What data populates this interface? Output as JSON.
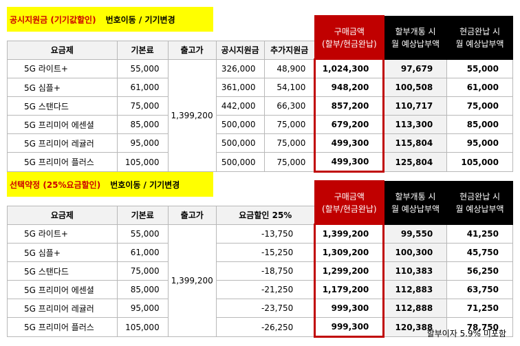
{
  "section1": {
    "title_red": "공시지원금 (기기값할인)",
    "title_black": "번호이동 / 기기변경",
    "headers": [
      "요금제",
      "기본료",
      "출고가",
      "공시지원금",
      "추가지원금",
      "구매금액\n(할부/현금완납)",
      "할부개통 시\n월 예상납부액",
      "현금완납 시\n월 예상납부액"
    ],
    "release_price": "1,399,200",
    "rows": [
      {
        "plan": "5G 라이트+",
        "base": "55,000",
        "subsidy": "326,000",
        "extra": "48,900",
        "price": "1,024,300",
        "installment": "97,679",
        "cash": "55,000"
      },
      {
        "plan": "5G 심플+",
        "base": "61,000",
        "subsidy": "361,000",
        "extra": "54,100",
        "price": "948,200",
        "installment": "100,508",
        "cash": "61,000"
      },
      {
        "plan": "5G 스탠다드",
        "base": "75,000",
        "subsidy": "442,000",
        "extra": "66,300",
        "price": "857,200",
        "installment": "110,717",
        "cash": "75,000"
      },
      {
        "plan": "5G 프리미어 에센셜",
        "base": "85,000",
        "subsidy": "500,000",
        "extra": "75,000",
        "price": "679,200",
        "installment": "113,300",
        "cash": "85,000"
      },
      {
        "plan": "5G 프리미어 레귤러",
        "base": "95,000",
        "subsidy": "500,000",
        "extra": "75,000",
        "price": "499,300",
        "installment": "115,804",
        "cash": "95,000"
      },
      {
        "plan": "5G 프리미어 플러스",
        "base": "105,000",
        "subsidy": "500,000",
        "extra": "75,000",
        "price": "499,300",
        "installment": "125,804",
        "cash": "105,000"
      }
    ]
  },
  "section2": {
    "title_red": "선택약정 (25%요금할인)",
    "title_black": "번호이동 / 기기변경",
    "headers": [
      "요금제",
      "기본료",
      "출고가",
      "요금할인 25%",
      "구매금액\n(할부/현금완납)",
      "할부개통 시\n월 예상납부액",
      "현금완납 시\n월 예상납부액"
    ],
    "release_price": "1,399,200",
    "rows": [
      {
        "plan": "5G 라이트+",
        "base": "55,000",
        "discount": "-13,750",
        "price": "1,399,200",
        "installment": "99,550",
        "cash": "41,250"
      },
      {
        "plan": "5G 심플+",
        "base": "61,000",
        "discount": "-15,250",
        "price": "1,309,200",
        "installment": "100,300",
        "cash": "45,750"
      },
      {
        "plan": "5G 스탠다드",
        "base": "75,000",
        "discount": "-18,750",
        "price": "1,299,200",
        "installment": "110,383",
        "cash": "56,250"
      },
      {
        "plan": "5G 프리미어 에센셜",
        "base": "85,000",
        "discount": "-21,250",
        "price": "1,179,200",
        "installment": "112,883",
        "cash": "63,750"
      },
      {
        "plan": "5G 프리미어 레귤러",
        "base": "95,000",
        "discount": "-23,750",
        "price": "999,300",
        "installment": "112,888",
        "cash": "71,250"
      },
      {
        "plan": "5G 프리미어 플러스",
        "base": "105,000",
        "discount": "-26,250",
        "price": "999,300",
        "installment": "120,388",
        "cash": "78,750"
      }
    ]
  },
  "footnote": "할부이자 5.9% 미포함",
  "colors": {
    "title_bg": "#ffff00",
    "title_red": "#cc0000",
    "price_header": "#c00000",
    "dark_header": "#000000"
  }
}
